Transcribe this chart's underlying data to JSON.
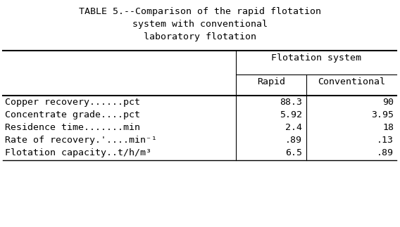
{
  "title_lines": [
    "TABLE 5.--Comparison of the rapid flotation",
    "system with conventional",
    "laboratory flotation"
  ],
  "col_header_span": "Flotation system",
  "col_headers": [
    "Rapid",
    "Conventional"
  ],
  "row_labels": [
    "Copper recovery......pct",
    "Concentrate grade....pct",
    "Residence time.......min",
    "Rate of recovery.'....min⁻¹",
    "Flotation capacity..t/h/m³"
  ],
  "rapid_values": [
    "88.3",
    "5.92",
    "2.4",
    ".89",
    "6.5"
  ],
  "conventional_values": [
    "90",
    "3.95",
    "18",
    ".13",
    ".89"
  ],
  "bg_color": "#ffffff",
  "font_family": "DejaVu Sans Mono",
  "title_fontsize": 9.5,
  "header_fontsize": 9.5,
  "data_fontsize": 9.5
}
